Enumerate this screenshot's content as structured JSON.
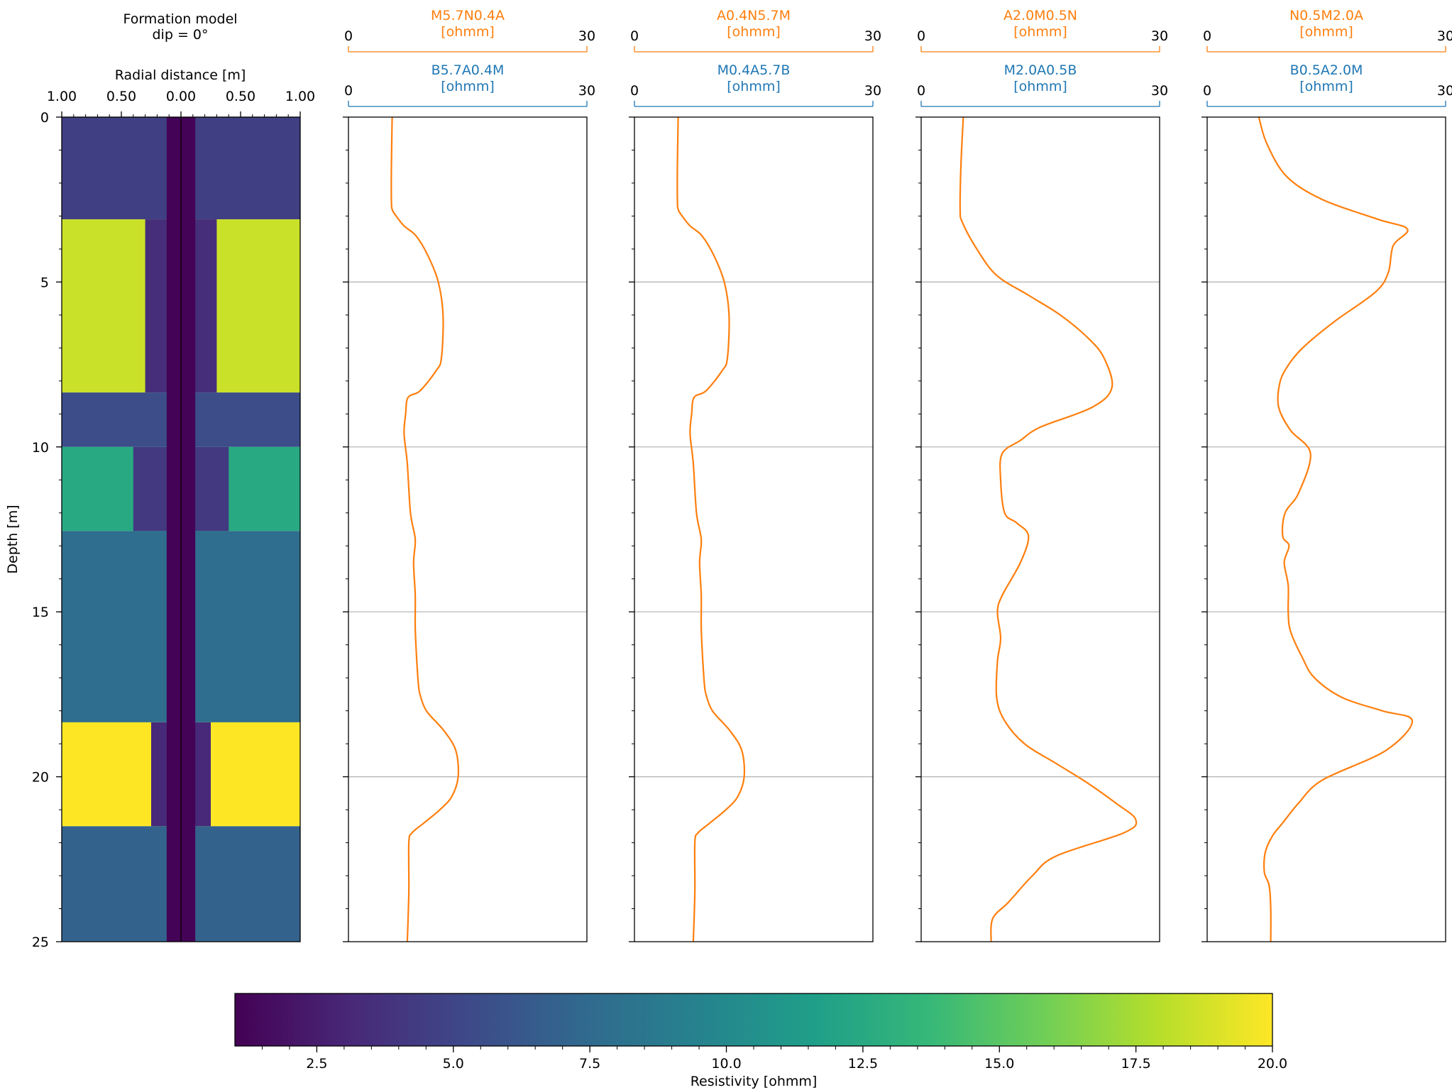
{
  "chart_data": [
    {
      "type": "heatmap",
      "title": "Formation model",
      "subtitle": "dip = 0°",
      "xlabel": "Radial distance [m]",
      "ylabel": "Depth [m]",
      "xlim": [
        -1.0,
        1.0
      ],
      "ylim": [
        0,
        25
      ],
      "xticks": [
        "1.00",
        "0.50",
        "0.00",
        "0.50",
        "1.00"
      ],
      "xtick_values": [
        -1.0,
        -0.5,
        0.0,
        0.5,
        1.0
      ],
      "yticks": [
        "0",
        "5",
        "10",
        "15",
        "20",
        "25"
      ],
      "ytick_values": [
        0,
        5,
        10,
        15,
        20,
        25
      ],
      "borehole": {
        "radius": 0.12,
        "resistivity": 1.1
      },
      "layers": [
        {
          "top": 0.0,
          "bottom": 3.1,
          "invaded_radius": 0.12,
          "invaded_resistivity": 4.6,
          "formation_resistivity": 4.6
        },
        {
          "top": 3.1,
          "bottom": 8.35,
          "invaded_radius": 0.3,
          "invaded_resistivity": 3.5,
          "formation_resistivity": 18.5
        },
        {
          "top": 8.35,
          "bottom": 10.0,
          "invaded_radius": 0.12,
          "invaded_resistivity": 5.5,
          "formation_resistivity": 5.5
        },
        {
          "top": 10.0,
          "bottom": 12.55,
          "invaded_radius": 0.4,
          "invaded_resistivity": 4.2,
          "formation_resistivity": 12.5
        },
        {
          "top": 12.55,
          "bottom": 18.35,
          "invaded_radius": 0.12,
          "invaded_resistivity": 7.8,
          "formation_resistivity": 7.8
        },
        {
          "top": 18.35,
          "bottom": 21.5,
          "invaded_radius": 0.25,
          "invaded_resistivity": 3.2,
          "formation_resistivity": 20.0
        },
        {
          "top": 21.5,
          "bottom": 25.0,
          "invaded_radius": 0.12,
          "invaded_resistivity": 7.0,
          "formation_resistivity": 7.0
        }
      ]
    },
    {
      "type": "line",
      "top_label": "M5.7N0.4A",
      "top_unit": "[ohmm]",
      "bottom_label": "B5.7A0.4M",
      "bottom_unit": "[ohmm]",
      "xlim": [
        0,
        30
      ],
      "ylim": [
        0,
        25
      ],
      "series": [
        {
          "name": "M5.7N0.4A",
          "x": [
            5.5,
            5.4,
            5.4,
            5.5,
            6.0,
            7.0,
            8.5,
            10.0,
            11.3,
            11.9,
            11.7,
            11.0,
            9.0,
            7.5,
            7.2,
            7.0,
            7.4,
            7.8,
            8.4,
            8.2,
            8.4,
            8.4,
            8.6,
            8.8,
            9.0,
            9.8,
            12.0,
            13.5,
            13.8,
            13.0,
            11.5,
            9.5,
            8.0,
            7.6,
            7.6,
            7.4
          ],
          "y": [
            0.0,
            1.5,
            2.5,
            2.8,
            3.0,
            3.3,
            3.6,
            4.2,
            5.0,
            6.0,
            7.3,
            7.7,
            8.3,
            8.5,
            9.0,
            9.6,
            10.5,
            12.0,
            12.8,
            13.5,
            14.5,
            15.5,
            16.5,
            17.2,
            17.5,
            18.0,
            18.6,
            19.2,
            20.0,
            20.6,
            21.0,
            21.4,
            21.7,
            22.0,
            23.5,
            25.0
          ]
        }
      ]
    },
    {
      "type": "line",
      "top_label": "A0.4N5.7M",
      "top_unit": "[ohmm]",
      "bottom_label": "M0.4A5.7B",
      "bottom_unit": "[ohmm]",
      "xlim": [
        0,
        30
      ],
      "ylim": [
        0,
        25
      ],
      "series": [
        {
          "name": "A0.4N5.7M",
          "x": [
            5.5,
            5.4,
            5.4,
            5.5,
            6.0,
            7.0,
            8.5,
            10.0,
            11.3,
            11.9,
            11.7,
            11.0,
            9.0,
            7.5,
            7.2,
            7.0,
            7.4,
            7.8,
            8.4,
            8.2,
            8.4,
            8.4,
            8.6,
            8.8,
            9.0,
            9.8,
            12.0,
            13.5,
            13.8,
            13.0,
            11.5,
            9.5,
            8.0,
            7.6,
            7.6,
            7.4
          ],
          "y": [
            0.0,
            1.5,
            2.5,
            2.8,
            3.0,
            3.3,
            3.6,
            4.2,
            5.0,
            6.0,
            7.3,
            7.7,
            8.3,
            8.5,
            9.0,
            9.6,
            10.5,
            12.0,
            12.8,
            13.5,
            14.5,
            15.5,
            16.5,
            17.2,
            17.5,
            18.0,
            18.6,
            19.2,
            20.0,
            20.6,
            21.0,
            21.4,
            21.7,
            22.0,
            23.5,
            25.0
          ]
        }
      ]
    },
    {
      "type": "line",
      "top_label": "A2.0M0.5N",
      "top_unit": "[ohmm]",
      "bottom_label": "M2.0A0.5B",
      "bottom_unit": "[ohmm]",
      "xlim": [
        0,
        30
      ],
      "ylim": [
        0,
        25
      ],
      "series": [
        {
          "name": "A2.0M0.5N",
          "x": [
            5.3,
            5.0,
            4.9,
            5.2,
            7.0,
            9.5,
            13.5,
            17.5,
            21.0,
            23.0,
            24.0,
            21.5,
            15.0,
            12.5,
            10.2,
            10.0,
            10.5,
            12.0,
            13.5,
            12.5,
            10.2,
            9.6,
            10.0,
            9.6,
            9.5,
            10.5,
            13.0,
            17.0,
            21.0,
            24.5,
            27.0,
            25.5,
            17.0,
            14.0,
            11.0,
            9.0,
            8.8
          ],
          "y": [
            0.0,
            1.5,
            2.8,
            3.2,
            4.0,
            4.8,
            5.4,
            6.0,
            6.7,
            7.3,
            8.2,
            8.8,
            9.4,
            9.8,
            10.2,
            11.0,
            12.0,
            12.3,
            12.7,
            13.5,
            14.5,
            15.0,
            15.8,
            16.5,
            17.6,
            18.3,
            19.0,
            19.6,
            20.2,
            20.8,
            21.3,
            21.7,
            22.4,
            23.0,
            23.8,
            24.3,
            25.0
          ]
        }
      ]
    },
    {
      "type": "line",
      "top_label": "N0.5M2.0A",
      "top_unit": "[ohmm]",
      "bottom_label": "B0.5A2.0M",
      "bottom_unit": "[ohmm]",
      "xlim": [
        0,
        30
      ],
      "ylim": [
        0,
        25
      ],
      "series": [
        {
          "name": "N0.5M2.0A",
          "x": [
            6.5,
            7.5,
            10.0,
            14.5,
            21.5,
            25.2,
            23.4,
            22.8,
            21.2,
            16.0,
            12.0,
            10.0,
            9.1,
            9.0,
            10.5,
            13.0,
            11.5,
            9.8,
            9.5,
            10.3,
            9.7,
            10.2,
            10.2,
            10.5,
            12.0,
            13.5,
            17.0,
            22.0,
            25.8,
            22.5,
            14.5,
            11.5,
            9.5,
            8.2,
            7.3,
            7.2,
            7.8,
            8.0,
            8.0
          ],
          "y": [
            0.0,
            0.8,
            1.8,
            2.5,
            3.1,
            3.4,
            3.9,
            4.7,
            5.3,
            6.2,
            7.0,
            7.6,
            8.1,
            8.8,
            9.5,
            10.2,
            11.4,
            12.0,
            12.7,
            13.0,
            13.5,
            14.2,
            15.0,
            15.6,
            16.4,
            17.0,
            17.6,
            18.0,
            18.3,
            19.2,
            20.1,
            20.8,
            21.4,
            21.8,
            22.3,
            22.9,
            23.3,
            24.0,
            25.0
          ]
        }
      ]
    }
  ],
  "colorbar": {
    "label": "Resistivity [ohmm]",
    "range": [
      1.0,
      20.0
    ],
    "ticks": [
      "2.5",
      "5.0",
      "7.5",
      "10.0",
      "12.5",
      "15.0",
      "17.5",
      "20.0"
    ],
    "tick_values": [
      2.5,
      5.0,
      7.5,
      10.0,
      12.5,
      15.0,
      17.5,
      20.0
    ],
    "colormap": [
      "#440154",
      "#482878",
      "#3e4989",
      "#31688e",
      "#26828e",
      "#1f9e89",
      "#35b779",
      "#6ece58",
      "#b5de2b",
      "#fde725"
    ]
  },
  "colors": {
    "top_axis": "#ff7f0e",
    "bottom_axis": "#1f77b4",
    "curve": "#ff7f0e",
    "grid": "#b0b0b0"
  }
}
